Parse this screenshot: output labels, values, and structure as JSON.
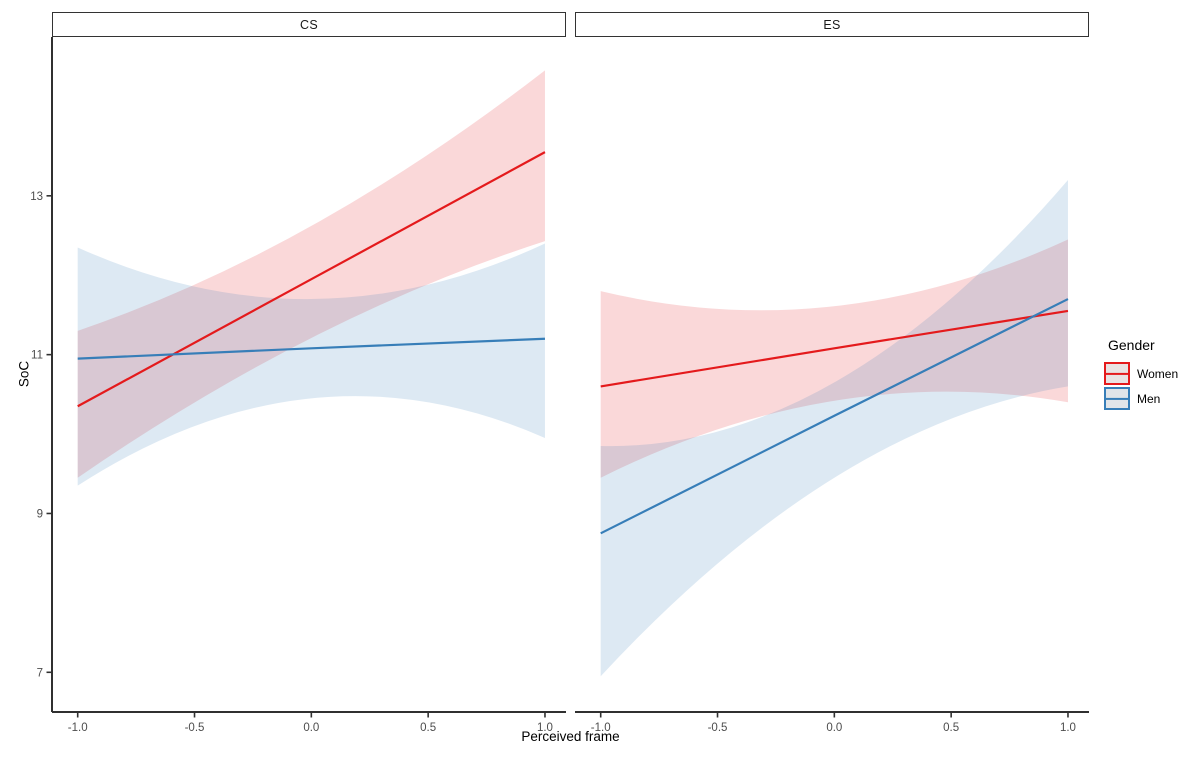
{
  "chart_data": {
    "type": "line",
    "title": "",
    "xlabel": "Perceived frame",
    "ylabel": "SoC",
    "grid": false,
    "xlim": [
      -1.11,
      1.09
    ],
    "ylim": [
      6.5,
      15.0
    ],
    "x_ticks": [
      -1.0,
      -0.5,
      0.0,
      0.5,
      1.0
    ],
    "x_tick_labels": [
      "-1.0",
      "-0.5",
      "0.0",
      "0.5",
      "1.0"
    ],
    "y_ticks": [
      7,
      9,
      11,
      13
    ],
    "y_tick_labels": [
      "7",
      "9",
      "11",
      "13"
    ],
    "legend": {
      "title": "Gender",
      "position": "right",
      "entries": [
        {
          "label": "Women",
          "line_color": "#e41a1c",
          "box_fill": "#e9e3e3"
        },
        {
          "label": "Men",
          "line_color": "#377eb8",
          "box_fill": "#e1e5e9"
        }
      ]
    },
    "panels": [
      {
        "facet": "CS",
        "series": [
          {
            "name": "Women",
            "color": "#e41a1c",
            "x": [
              -1,
              0,
              1
            ],
            "y": [
              10.35,
              11.95,
              13.55
            ],
            "ci_upper": [
              11.3,
              12.62,
              14.58
            ],
            "ci_lower": [
              9.45,
              11.21,
              12.43
            ]
          },
          {
            "name": "Men",
            "color": "#377eb8",
            "x": [
              -1,
              0,
              1
            ],
            "y": [
              10.95,
              11.08,
              11.2
            ],
            "ci_upper": [
              12.35,
              11.7,
              12.4
            ],
            "ci_lower": [
              9.35,
              10.45,
              9.95
            ]
          }
        ]
      },
      {
        "facet": "ES",
        "series": [
          {
            "name": "Women",
            "color": "#e41a1c",
            "x": [
              -1,
              0,
              1
            ],
            "y": [
              10.6,
              11.08,
              11.55
            ],
            "ci_upper": [
              11.8,
              11.61,
              12.45
            ],
            "ci_lower": [
              9.45,
              10.42,
              10.4
            ]
          },
          {
            "name": "Men",
            "color": "#377eb8",
            "x": [
              -1,
              0,
              1
            ],
            "y": [
              8.75,
              10.23,
              11.7
            ],
            "ci_upper": [
              9.85,
              10.65,
              13.2
            ],
            "ci_lower": [
              6.95,
              9.45,
              10.6
            ]
          }
        ]
      }
    ]
  }
}
